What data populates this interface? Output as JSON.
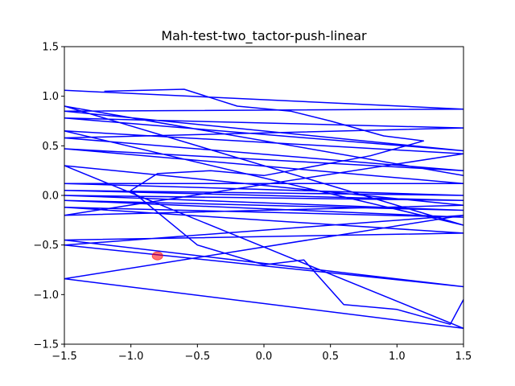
{
  "chart_data": {
    "type": "line",
    "title": "Mah-test-two_tactor-push-linear",
    "xlabel": "",
    "ylabel": "",
    "xlim": [
      -1.5,
      1.5
    ],
    "ylim": [
      -1.5,
      1.5
    ],
    "x_ticks": [
      -1.5,
      -1.0,
      -0.5,
      0.0,
      0.5,
      1.0,
      1.5
    ],
    "y_ticks": [
      -1.5,
      -1.0,
      -0.5,
      0.0,
      0.5,
      1.0,
      1.5
    ],
    "x_tick_labels": [
      "−1.5",
      "−1.0",
      "−0.5",
      "0.0",
      "0.5",
      "1.0",
      "1.5"
    ],
    "y_tick_labels": [
      "−1.5",
      "−1.0",
      "−0.5",
      "0.0",
      "0.5",
      "1.0",
      "1.5"
    ],
    "grid": false,
    "trajectory_color": "#0000ff",
    "marker_color": "#ff0000",
    "series": [
      {
        "values_note": "trajectory polyline (x, y) in data units",
        "x": [
          -1.5,
          1.5,
          -1.5,
          1.5,
          -1.5,
          1.5,
          -1.5,
          1.5,
          -1.5,
          1.5,
          -1.5,
          1.5,
          -1.5,
          1.5,
          -1.5,
          1.5,
          -1.5,
          1.5,
          -1.5,
          1.5,
          -1.5,
          1.5,
          -1.5,
          1.5,
          -1.5,
          1.5,
          -1.5,
          1.5,
          -1.5,
          1.5,
          -1.5,
          1.5,
          -1.5,
          1.5
        ],
        "y": [
          1.06,
          0.87,
          0.85,
          0.45,
          0.78,
          0.68,
          0.58,
          0.25,
          0.47,
          0.12,
          0.12,
          0.0,
          0.05,
          -0.05,
          0.0,
          -0.15,
          -0.05,
          -0.22,
          -0.12,
          -0.38,
          -0.45,
          -0.92,
          -0.5,
          -0.2,
          -0.84,
          -1.34,
          0.3,
          -0.1,
          -0.2,
          0.42,
          0.65,
          -0.3,
          0.9,
          0.2
        ]
      },
      {
        "values_note": "secondary trajectory segments",
        "x": [
          -1.2,
          -0.6,
          -0.2,
          0.2,
          0.5,
          0.9,
          1.2,
          0.8,
          0.4,
          0.0,
          -0.4,
          -0.8,
          -1.0,
          -0.5,
          0.0,
          0.3,
          0.6,
          1.0,
          1.4,
          1.5
        ],
        "y": [
          1.05,
          1.07,
          0.9,
          0.85,
          0.75,
          0.6,
          0.55,
          0.4,
          0.3,
          0.2,
          0.25,
          0.22,
          0.05,
          -0.5,
          -0.7,
          -0.65,
          -1.1,
          -1.15,
          -1.3,
          -1.05
        ]
      }
    ],
    "markers": [
      {
        "x": -0.8,
        "y": -0.61,
        "shape": "circle"
      }
    ]
  }
}
